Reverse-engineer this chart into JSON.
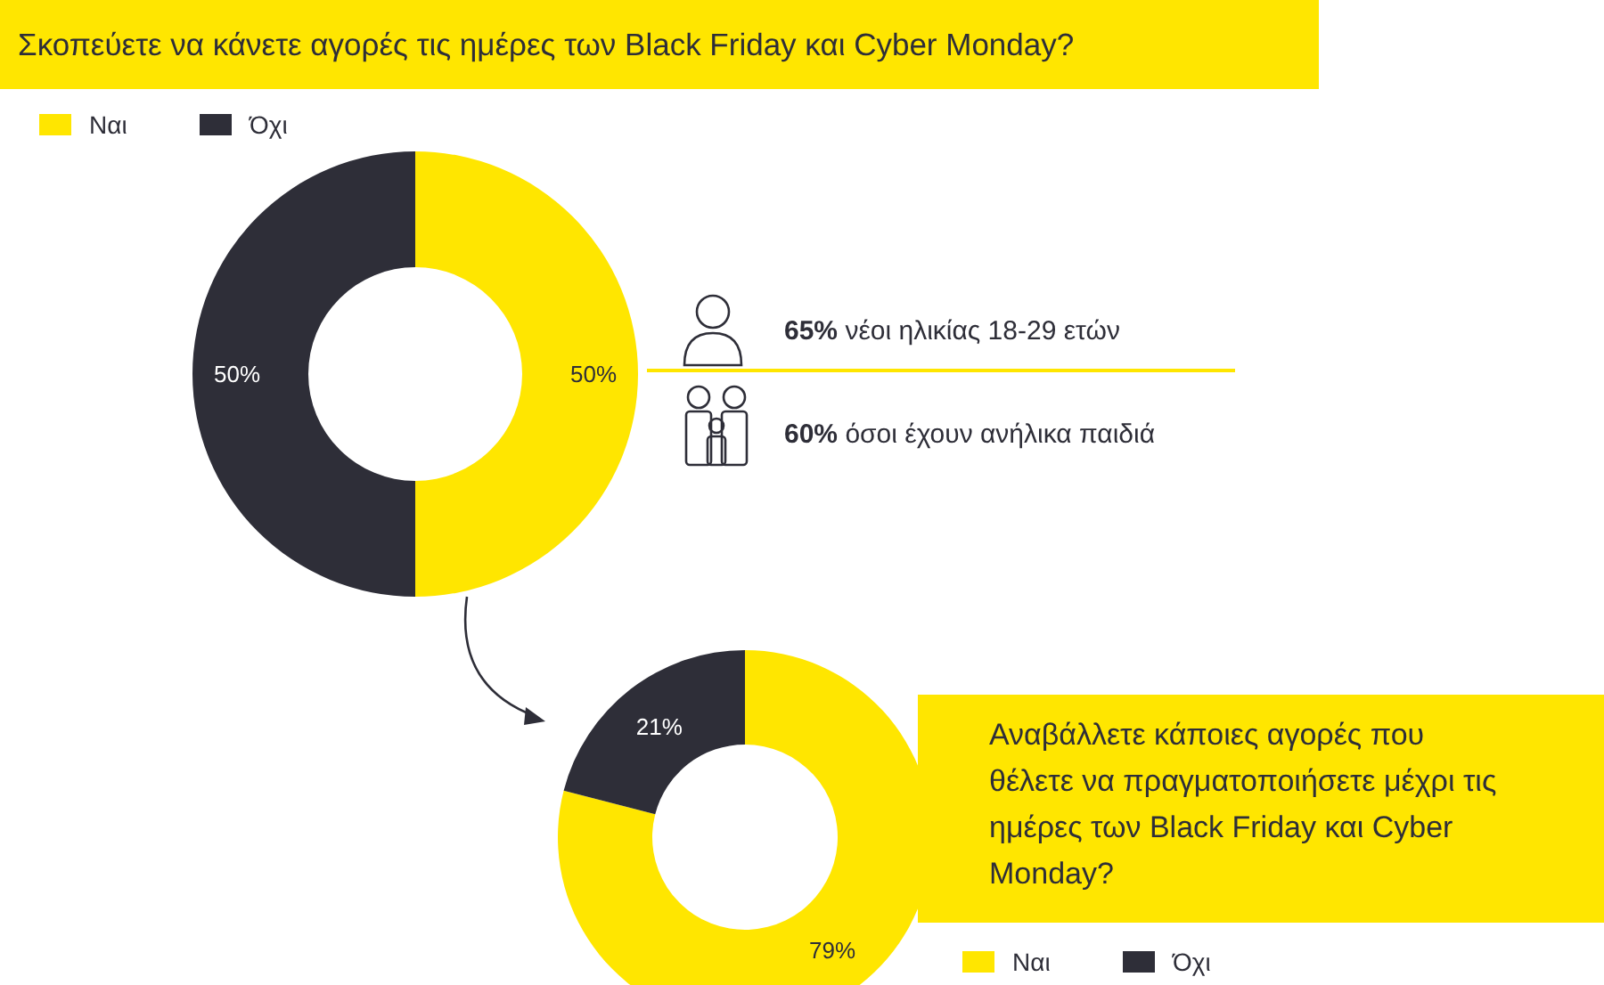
{
  "chart_data": [
    {
      "type": "donut",
      "title": "Σκοπεύετε να κάνετε αγορές τις ημέρες των Black Friday και Cyber Monday?",
      "categories": [
        "Ναι",
        "Όχι"
      ],
      "values": [
        50,
        50
      ],
      "colors": [
        "#ffe600",
        "#2e2e38"
      ],
      "value_labels": [
        "50%",
        "50%"
      ],
      "legend": "top left",
      "annotations": [
        "65% νέοι ηλικίας 18-29 ετών",
        "60% όσοι έχουν ανήλικα παιδιά"
      ]
    },
    {
      "type": "donut",
      "title": "Αναβάλλετε κάποιες αγορές που θέλετε να πραγματοποιήσετε μέχρι τις ημέρες των Black Friday και Cyber Monday?",
      "categories": [
        "Ναι",
        "Όχι"
      ],
      "values": [
        79,
        21
      ],
      "colors": [
        "#ffe600",
        "#2e2e38"
      ],
      "value_labels": [
        "79%",
        "21%"
      ],
      "legend": "bottom right"
    }
  ]
}
